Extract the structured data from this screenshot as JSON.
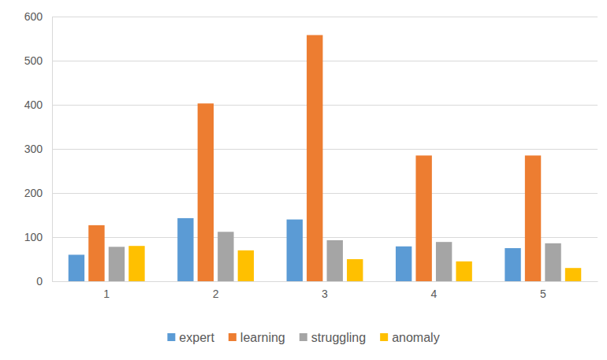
{
  "chart_data": {
    "type": "bar",
    "categories": [
      "1",
      "2",
      "3",
      "4",
      "5"
    ],
    "series": [
      {
        "name": "expert",
        "color": "#5b9bd5",
        "values": [
          60,
          143,
          140,
          79,
          75
        ]
      },
      {
        "name": "learning",
        "color": "#ed7d31",
        "values": [
          127,
          403,
          558,
          285,
          285
        ]
      },
      {
        "name": "struggling",
        "color": "#a5a5a5",
        "values": [
          78,
          112,
          93,
          89,
          86
        ]
      },
      {
        "name": "anomaly",
        "color": "#ffc000",
        "values": [
          80,
          70,
          50,
          45,
          30
        ]
      }
    ],
    "ylim": [
      0,
      600
    ],
    "yticks": [
      0,
      100,
      200,
      300,
      400,
      500,
      600
    ],
    "grid": true,
    "legend": "bottom"
  }
}
